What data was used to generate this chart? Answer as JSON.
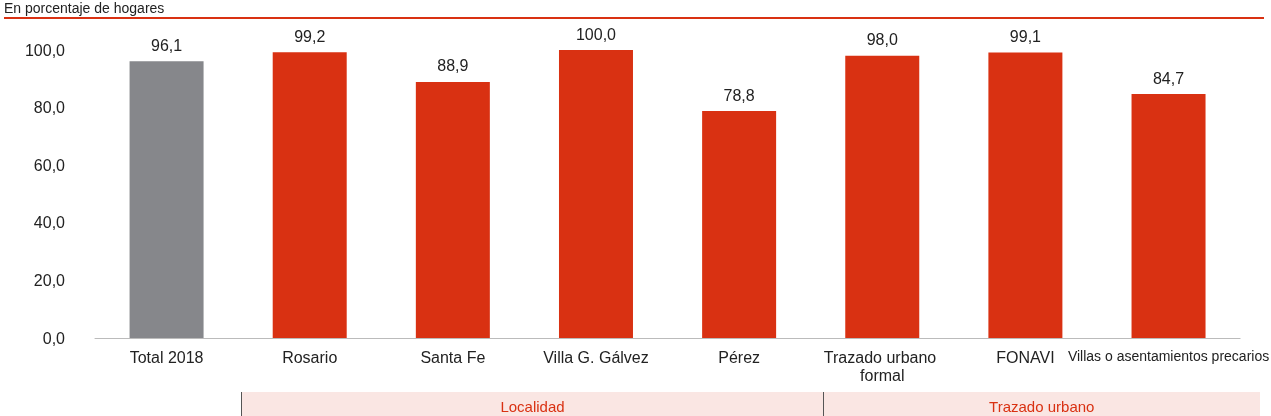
{
  "chart_data": {
    "type": "bar",
    "subtitle": "En porcentaje de hogares",
    "categories": [
      "Total 2018",
      "Rosario",
      "Santa Fe",
      "Villa G. Gálvez",
      "Pérez",
      "Trazado urbano formal",
      "FONAVI",
      "Villas o asentamientos precarios"
    ],
    "values": [
      96.1,
      99.2,
      88.9,
      100.0,
      78.8,
      98.0,
      99.1,
      84.7
    ],
    "colors": [
      "#86878b",
      "#d93112",
      "#d93112",
      "#d93112",
      "#d93112",
      "#d93112",
      "#d93112",
      "#d93112"
    ],
    "value_labels": [
      "96,1",
      "99,2",
      "88,9",
      "100,0",
      "78,8",
      "98,0",
      "99,1",
      "84,7"
    ],
    "ylim": [
      0,
      100
    ],
    "yticks": [
      {
        "value": 0,
        "label": "0,0"
      },
      {
        "value": 20,
        "label": "20,0"
      },
      {
        "value": 40,
        "label": "40,0"
      },
      {
        "value": 60,
        "label": "60,0"
      },
      {
        "value": 80,
        "label": "80,0"
      },
      {
        "value": 100,
        "label": "100,0"
      }
    ],
    "annotations": [
      "Localidad",
      "Trazado urbano"
    ],
    "grid": false
  }
}
